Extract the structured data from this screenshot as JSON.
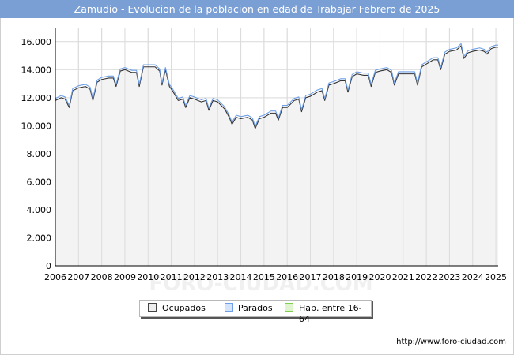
{
  "title": "Zamudio - Evolucion de la poblacion en edad de Trabajar Febrero de 2025",
  "url": "http://www.foro-ciudad.com",
  "watermark": "FORO-CIUDAD.COM",
  "colors": {
    "title_bg": "#7a9fd4",
    "area_fill": "#f3f3f3",
    "ocupados_line": "#333333",
    "parados_line": "#6f9fe6",
    "hab_line": "#7fd04a",
    "grid": "#d9d9d9"
  },
  "legend": {
    "ocupados": "Ocupados",
    "parados": "Parados",
    "hab": "Hab. entre 16-64"
  },
  "chart_data": {
    "type": "line",
    "title": "Zamudio - Evolucion de la poblacion en edad de Trabajar Febrero de 2025",
    "xlabel": "",
    "ylabel": "",
    "ylim": [
      0,
      17000
    ],
    "xlim": [
      2006,
      2025.1
    ],
    "yticks": [
      0,
      2000,
      4000,
      6000,
      8000,
      10000,
      12000,
      14000,
      16000
    ],
    "ytick_labels": [
      "0",
      "2.000",
      "4.000",
      "6.000",
      "8.000",
      "10.000",
      "12.000",
      "14.000",
      "16.000"
    ],
    "xticks": [
      "2006",
      "2007",
      "2008",
      "2009",
      "2010",
      "2011",
      "2012",
      "2013",
      "2014",
      "2015",
      "2016",
      "2017",
      "2018",
      "2019",
      "2020",
      "2021",
      "2022",
      "2023",
      "2024",
      "2025"
    ],
    "grid": true,
    "legend_position": "bottom-center",
    "series": [
      {
        "name": "Ocupados",
        "x": [
          2006.0,
          2006.25,
          2006.42,
          2006.6,
          2006.75,
          2007.0,
          2007.3,
          2007.5,
          2007.62,
          2007.8,
          2008.0,
          2008.3,
          2008.5,
          2008.62,
          2008.8,
          2009.0,
          2009.3,
          2009.5,
          2009.62,
          2009.8,
          2010.0,
          2010.3,
          2010.5,
          2010.6,
          2010.75,
          2010.92,
          2011.05,
          2011.3,
          2011.5,
          2011.62,
          2011.8,
          2012.0,
          2012.3,
          2012.5,
          2012.62,
          2012.8,
          2013.0,
          2013.3,
          2013.5,
          2013.62,
          2013.8,
          2014.0,
          2014.3,
          2014.5,
          2014.62,
          2014.8,
          2015.0,
          2015.3,
          2015.5,
          2015.62,
          2015.8,
          2016.0,
          2016.3,
          2016.5,
          2016.62,
          2016.8,
          2017.0,
          2017.3,
          2017.5,
          2017.62,
          2017.8,
          2018.0,
          2018.3,
          2018.5,
          2018.62,
          2018.8,
          2019.0,
          2019.3,
          2019.5,
          2019.62,
          2019.8,
          2020.0,
          2020.3,
          2020.5,
          2020.62,
          2020.8,
          2021.0,
          2021.3,
          2021.5,
          2021.62,
          2021.8,
          2022.0,
          2022.3,
          2022.5,
          2022.62,
          2022.8,
          2023.0,
          2023.3,
          2023.5,
          2023.62,
          2023.8,
          2024.0,
          2024.3,
          2024.5,
          2024.62,
          2024.8,
          2025.0,
          2025.1
        ],
        "values": [
          11800,
          12000,
          11900,
          11300,
          12500,
          12700,
          12800,
          12600,
          11800,
          13100,
          13300,
          13400,
          13400,
          12800,
          13900,
          14000,
          13800,
          13800,
          12800,
          14200,
          14200,
          14200,
          13900,
          12900,
          14000,
          12800,
          12500,
          11800,
          11900,
          11300,
          12000,
          11900,
          11700,
          11800,
          11100,
          11800,
          11700,
          11200,
          10600,
          10100,
          10600,
          10500,
          10600,
          10400,
          9800,
          10500,
          10600,
          10900,
          10900,
          10400,
          11300,
          11300,
          11800,
          11900,
          11000,
          12000,
          12100,
          12400,
          12500,
          11800,
          12900,
          13000,
          13200,
          13200,
          12400,
          13500,
          13700,
          13600,
          13600,
          12800,
          13800,
          13900,
          14000,
          13800,
          12900,
          13700,
          13700,
          13700,
          13700,
          12900,
          14200,
          14400,
          14700,
          14700,
          14000,
          15100,
          15300,
          15400,
          15700,
          14800,
          15200,
          15300,
          15400,
          15300,
          15100,
          15500,
          15600,
          15600
        ]
      },
      {
        "name": "Parados",
        "x": [
          2006.0,
          2006.25,
          2006.42,
          2006.6,
          2006.75,
          2007.0,
          2007.3,
          2007.5,
          2007.62,
          2007.8,
          2008.0,
          2008.3,
          2008.5,
          2008.62,
          2008.8,
          2009.0,
          2009.3,
          2009.5,
          2009.62,
          2009.8,
          2010.0,
          2010.3,
          2010.5,
          2010.6,
          2010.75,
          2010.92,
          2011.05,
          2011.3,
          2011.5,
          2011.62,
          2011.8,
          2012.0,
          2012.3,
          2012.5,
          2012.62,
          2012.8,
          2013.0,
          2013.3,
          2013.5,
          2013.62,
          2013.8,
          2014.0,
          2014.3,
          2014.5,
          2014.62,
          2014.8,
          2015.0,
          2015.3,
          2015.5,
          2015.62,
          2015.8,
          2016.0,
          2016.3,
          2016.5,
          2016.62,
          2016.8,
          2017.0,
          2017.3,
          2017.5,
          2017.62,
          2017.8,
          2018.0,
          2018.3,
          2018.5,
          2018.62,
          2018.8,
          2019.0,
          2019.3,
          2019.5,
          2019.62,
          2019.8,
          2020.0,
          2020.3,
          2020.5,
          2020.62,
          2020.8,
          2021.0,
          2021.3,
          2021.5,
          2021.62,
          2021.8,
          2022.0,
          2022.3,
          2022.5,
          2022.62,
          2022.8,
          2023.0,
          2023.3,
          2023.5,
          2023.62,
          2023.8,
          2024.0,
          2024.3,
          2024.5,
          2024.62,
          2024.8,
          2025.0,
          2025.1
        ],
        "values": [
          11950,
          12150,
          12050,
          11450,
          12650,
          12850,
          12950,
          12750,
          11950,
          13250,
          13450,
          13550,
          13550,
          12950,
          14050,
          14150,
          13950,
          13950,
          12950,
          14350,
          14350,
          14350,
          14050,
          13050,
          14150,
          12950,
          12650,
          11950,
          12050,
          11450,
          12150,
          12050,
          11850,
          11950,
          11250,
          11950,
          11850,
          11350,
          10750,
          10250,
          10750,
          10650,
          10750,
          10550,
          9950,
          10650,
          10750,
          11050,
          11050,
          10550,
          11450,
          11450,
          11950,
          12050,
          11150,
          12150,
          12250,
          12550,
          12650,
          11950,
          13050,
          13150,
          13350,
          13350,
          12550,
          13650,
          13850,
          13750,
          13750,
          12950,
          13950,
          14050,
          14150,
          13950,
          13050,
          13850,
          13850,
          13850,
          13850,
          13050,
          14350,
          14550,
          14850,
          14850,
          14150,
          15250,
          15450,
          15550,
          15850,
          14950,
          15350,
          15450,
          15550,
          15450,
          15250,
          15650,
          15750,
          15750
        ]
      },
      {
        "name": "Hab. entre 16-64",
        "x": [],
        "values": []
      }
    ]
  }
}
